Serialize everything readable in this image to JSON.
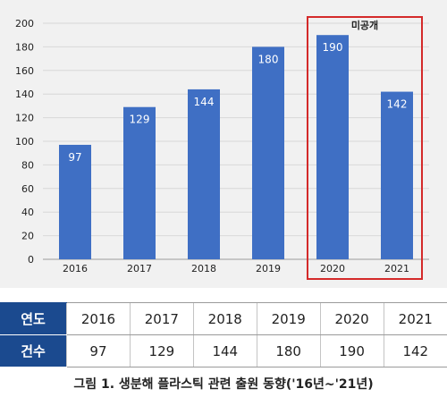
{
  "chart_data": {
    "type": "bar",
    "categories": [
      "2016",
      "2017",
      "2018",
      "2019",
      "2020",
      "2021"
    ],
    "values": [
      97,
      129,
      144,
      180,
      190,
      142
    ],
    "ylim": [
      0,
      200
    ],
    "yticks": [
      0,
      20,
      40,
      60,
      80,
      100,
      120,
      140,
      160,
      180,
      200
    ],
    "bar_color": "#3f6fc4",
    "grid": true,
    "annotation": {
      "text": "미공개",
      "categories": [
        "2020",
        "2021"
      ],
      "color": "#d42a2a"
    }
  },
  "table": {
    "rows": [
      {
        "header": "연도",
        "cells": [
          "2016",
          "2017",
          "2018",
          "2019",
          "2020",
          "2021"
        ]
      },
      {
        "header": "건수",
        "cells": [
          "97",
          "129",
          "144",
          "180",
          "190",
          "142"
        ]
      }
    ],
    "header_color": "#1b4a8f"
  },
  "caption": "그림 1. 생분해 플라스틱 관련 출원 동향('16년~'21년)"
}
